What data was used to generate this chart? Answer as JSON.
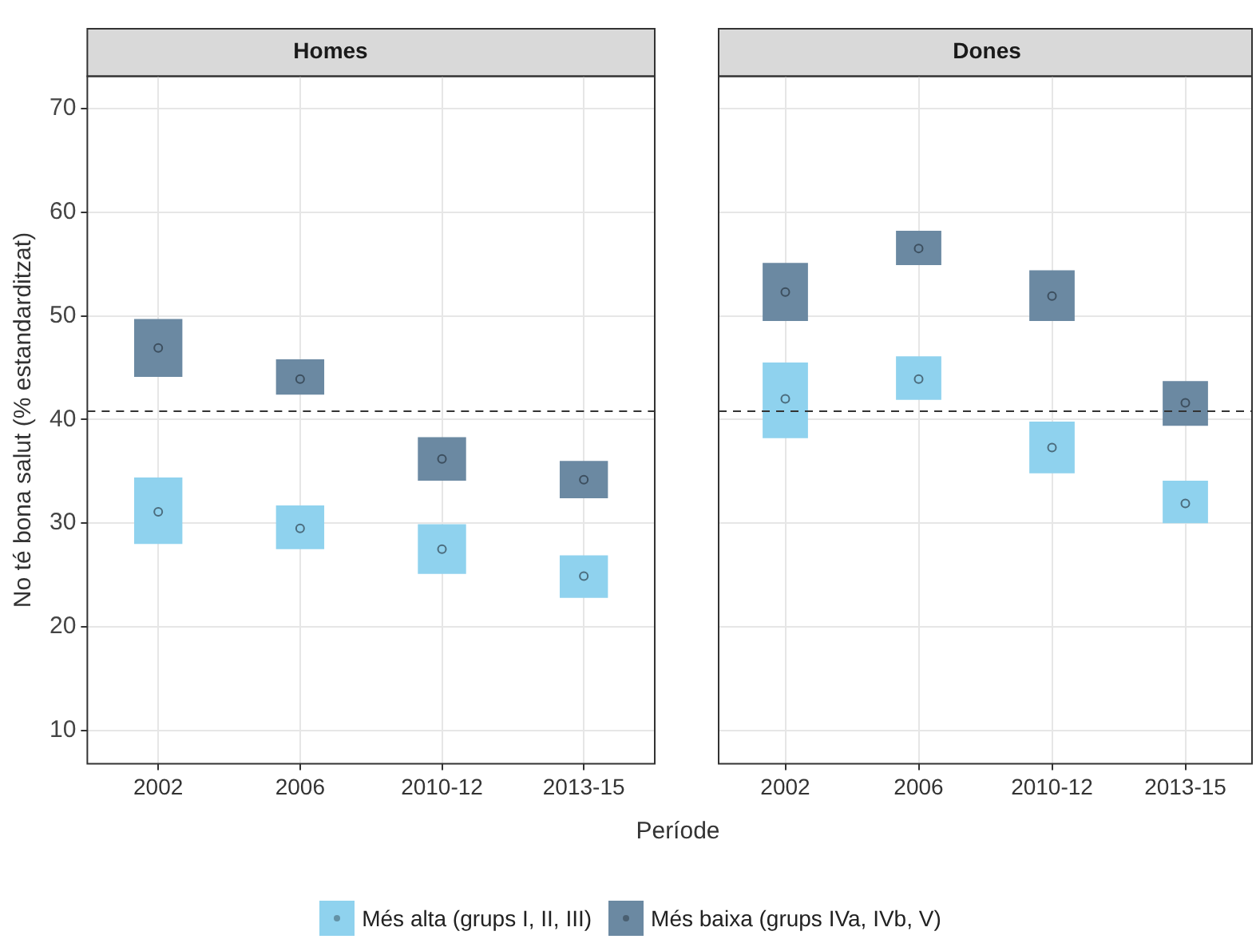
{
  "chart_data": [
    {
      "type": "scatter",
      "title": "Homes",
      "xlabel": "Període",
      "ylabel": "No té bona salut (% estandarditzat)",
      "categories": [
        "2002",
        "2006",
        "2010-12",
        "2013-15"
      ],
      "series": [
        {
          "name": "Més alta (grups I, II, III)",
          "color": "#8fd2ee",
          "values": [
            31.1,
            29.5,
            27.5,
            24.9
          ],
          "errors": [
            [
              28.0,
              34.4
            ],
            [
              27.5,
              31.7
            ],
            [
              25.1,
              29.9
            ],
            [
              22.8,
              26.9
            ]
          ]
        },
        {
          "name": "Més baixa (grups IVa, IVb, V)",
          "color": "#6b89a2",
          "values": [
            46.9,
            43.9,
            36.2,
            34.2
          ],
          "errors": [
            [
              44.1,
              49.7
            ],
            [
              42.4,
              45.8
            ],
            [
              34.1,
              38.3
            ],
            [
              32.4,
              36.0
            ]
          ]
        }
      ],
      "ylim": [
        6.8,
        73.1
      ],
      "yticks": [
        10,
        20,
        30,
        40,
        50,
        60,
        70
      ],
      "grid": true,
      "legend": "bottom",
      "marker": "circle",
      "ref_lines": [
        {
          "axis": "y",
          "value": 40.8,
          "line_style": "dashed",
          "color": "#333333"
        }
      ]
    },
    {
      "type": "scatter",
      "title": "Dones",
      "categories": [
        "2002",
        "2006",
        "2010-12",
        "2013-15"
      ],
      "series": [
        {
          "color": "#8fd2ee",
          "values": [
            42.0,
            43.9,
            37.3,
            31.9
          ],
          "errors": [
            [
              38.2,
              45.5
            ],
            [
              41.9,
              46.1
            ],
            [
              34.8,
              39.8
            ],
            [
              30.0,
              34.1
            ]
          ]
        },
        {
          "color": "#6b89a2",
          "values": [
            52.3,
            56.5,
            51.9,
            41.6
          ],
          "errors": [
            [
              49.5,
              55.1
            ],
            [
              54.9,
              58.2
            ],
            [
              49.5,
              54.4
            ],
            [
              39.4,
              43.7
            ]
          ]
        }
      ],
      "ylim": [
        6.8,
        73.1
      ],
      "yticks": [
        10,
        20,
        30,
        40,
        50,
        60,
        70
      ],
      "grid": true,
      "tick_labels": "x",
      "marker": "circle",
      "ref_lines": [
        {
          "axis": "y",
          "value": 40.8,
          "line_style": "dashed",
          "color": "#333333"
        }
      ]
    }
  ]
}
